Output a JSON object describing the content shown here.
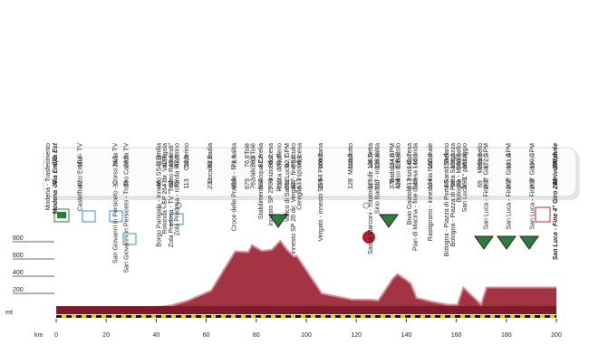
{
  "chart_data": {
    "type": "area",
    "categories": [
      "Modena - Trasferimento",
      "Modena - Via Emilia Est",
      "Castelfranco Emilia - TV",
      "San Giovanni in Persiceto - Corso Italia TV",
      "San Giovanni in Persiceto - Trofeo Casetta TV",
      "Borgo Panigale - innesto SS 9 Emilia",
      "Rotonda - SP 26 - dir. Val Rigola",
      "Zola Predosa - TV \"Trofeo Raimondi\"",
      "Zola Predosa - rotonda Pilastrino",
      "Calderino",
      "Località Badia",
      "Croce delle Pradole - fine salita",
      "Tolè",
      "Valico di Tolè",
      "Stabilimento Acqua Cerelia",
      "innesto SP 25 - inizio discesa",
      "Rocca di Roffeno",
      "Valico di Santa Lucia - GPM",
      "innesto SP 26 dir. Vergato - fine circuito",
      "Cereglio - inizio discesa",
      "Vergato - innesto SS 64 Porrettana",
      "Marzabotto",
      "Sasso Marconi - rotatoria - dir. via Setta",
      "Sirio Badolo - inizio salita",
      "Badolo - GPM",
      "Valico di Badolo",
      "Bivio Gaiziole - inizio discesa",
      "Pian di Macina - fine discesa - rotonda",
      "Rastignano - innesto via Nazionale",
      "Bologna - Piazza di Porta Santo Stefano",
      "Bologna - Piazza di Porta Saragozza",
      "Bologna - Meloncello",
      "San Luca - 1° passaggio",
      "Meloncello",
      "San Luca - Fine 1° Giro - GPM",
      "San Luca - Fine 2° Giro - GPM",
      "San Luca - Fine 3° Giro - GPM",
      "San Luca - Fine 4° Giro - Arrivo/Arrivée"
    ],
    "x": [
      null,
      0.0,
      10.0,
      24.1,
      28.5,
      41.4,
      42.9,
      46.4,
      47.9,
      52.5,
      62.0,
      71.6,
      76.8,
      78.3,
      82.2,
      86.2,
      89.6,
      92.7,
      95.2,
      96.1,
      106.2,
      118.2,
      126.0,
      128.8,
      134.8,
      136.5,
      141.7,
      144.1,
      150.0,
      156.6,
      159.1,
      160.5,
      162.8,
      169.9,
      172.1,
      181.4,
      190.7,
      200.0
    ],
    "x_labels": [
      null,
      "0,0",
      "10,0",
      "24,1",
      "28,5",
      "41,4",
      "42,9",
      "46,4",
      "47,9",
      "52,5",
      "62,0",
      "71,6",
      "76,8",
      "78,3",
      "82,2",
      "86,2",
      "89,6",
      "92,7",
      "95,2",
      "96,1",
      "106,2",
      "118,2",
      "126,0",
      "128,8",
      "134,8",
      "136,5",
      "141,7",
      "144,1",
      "150,0",
      "156,6",
      "159,1",
      "160,5",
      "162,8",
      "169,9",
      "172,1",
      "181,4",
      "190,7",
      "200,0"
    ],
    "values": [
      null,
      34,
      42,
      12,
      13,
      46,
      47,
      62,
      75,
      113,
      233,
      688,
      679,
      762,
      692,
      706,
      810,
      692,
      627,
      637,
      199,
      128,
      125,
      117,
      378,
      424,
      317,
      146,
      104,
      68,
      69,
      69,
      268,
      69,
      268,
      268,
      268,
      268
    ],
    "xlabel": "km",
    "ylabel": "mt",
    "xlim": [
      0,
      200
    ],
    "xticks": [
      0,
      20,
      40,
      60,
      80,
      100,
      120,
      140,
      160,
      180,
      200
    ],
    "ylim": [
      0,
      900
    ],
    "yticks": [
      200,
      400,
      600,
      800
    ],
    "color": "#a33444"
  }
}
